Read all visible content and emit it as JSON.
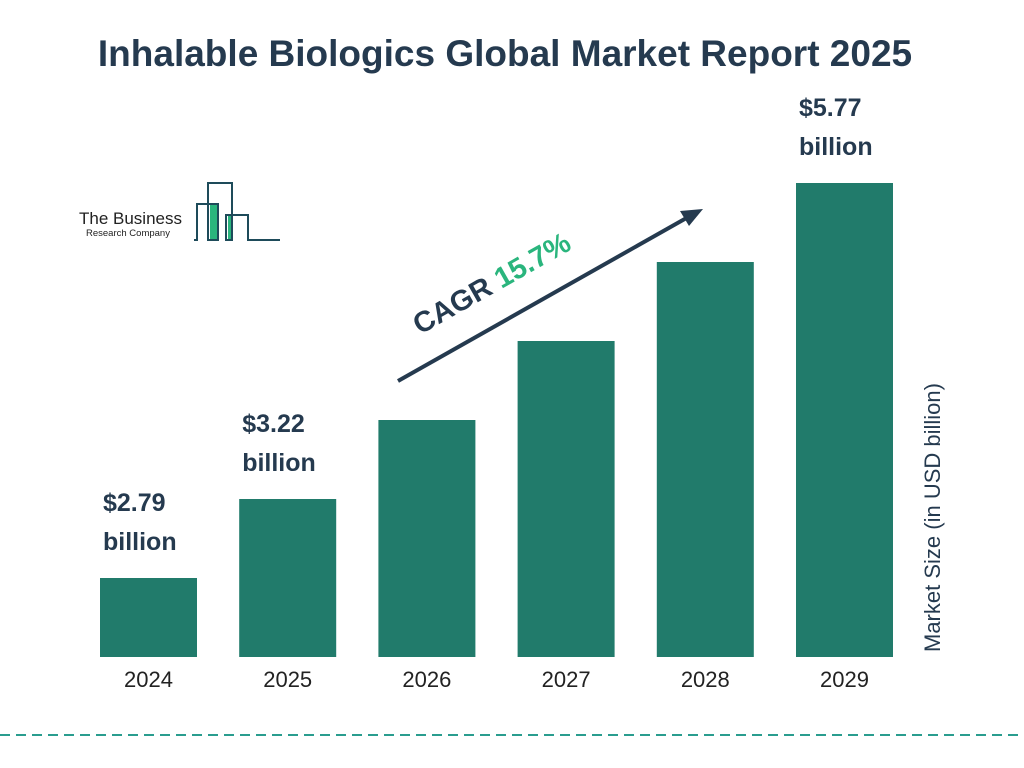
{
  "chart_data": {
    "type": "bar",
    "title": "Inhalable Biologics Global Market Report 2025",
    "ylabel": "Market Size (in USD billion)",
    "xlabel": "",
    "categories": [
      "2024",
      "2025",
      "2026",
      "2027",
      "2028",
      "2029"
    ],
    "values": [
      2.79,
      3.22,
      3.73,
      4.31,
      4.99,
      5.77
    ],
    "data_labels": [
      {
        "index": 0,
        "line1": "$2.79",
        "line2": "billion"
      },
      {
        "index": 1,
        "line1": "$3.22",
        "line2": "billion"
      },
      {
        "index": 5,
        "line1": "$5.77",
        "line2": "billion"
      }
    ],
    "annotation": {
      "prefix": "CAGR ",
      "value": "15.7%"
    },
    "grid": false,
    "colors": {
      "bar": "#217b6b",
      "text": "#253a4f",
      "cagr": "#2ab57d",
      "dash": "#2a9d8f"
    }
  },
  "logo": {
    "line1": "The Business",
    "line2": "Research Company"
  }
}
